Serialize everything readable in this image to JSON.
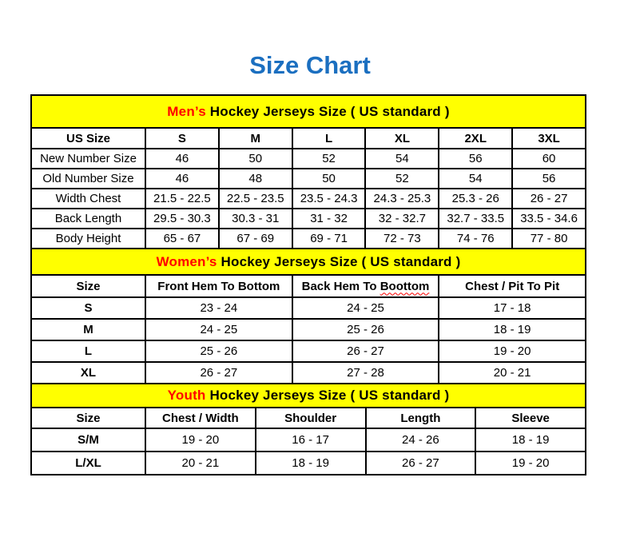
{
  "page": {
    "title": "Size Chart"
  },
  "colors": {
    "title": "#1b6fc0",
    "banner": "#ffff00",
    "accent": "#ff0000",
    "border": "#000000"
  },
  "sections": {
    "mens": {
      "banner_highlight": "Men’s",
      "banner_rest": " Hockey Jerseys Size ( US standard )",
      "headers": [
        "US Size",
        "S",
        "M",
        "L",
        "XL",
        "2XL",
        "3XL"
      ],
      "rows": [
        {
          "label": "New Number Size",
          "values": [
            "46",
            "50",
            "52",
            "54",
            "56",
            "60"
          ]
        },
        {
          "label": "Old Number Size",
          "values": [
            "46",
            "48",
            "50",
            "52",
            "54",
            "56"
          ]
        },
        {
          "label": "Width Chest",
          "values": [
            "21.5 - 22.5",
            "22.5 - 23.5",
            "23.5 - 24.3",
            "24.3 - 25.3",
            "25.3 - 26",
            "26 - 27"
          ]
        },
        {
          "label": "Back Length",
          "values": [
            "29.5 - 30.3",
            "30.3 - 31",
            "31 - 32",
            "32 - 32.7",
            "32.7 - 33.5",
            "33.5 - 34.6"
          ]
        },
        {
          "label": "Body Height",
          "values": [
            "65 - 67",
            "67 - 69",
            "69 - 71",
            "72 - 73",
            "74 - 76",
            "77 - 80"
          ]
        }
      ]
    },
    "womens": {
      "banner_highlight": "Women’s",
      "banner_rest": " Hockey Jerseys Size ( US standard )",
      "headers": {
        "size": "Size",
        "front": "Front Hem To Bottom",
        "back_prefix": "Back Hem To ",
        "back_typo": "Boottom",
        "chest": "Chest / Pit To Pit"
      },
      "rows": [
        {
          "label": "S",
          "values": [
            "23 - 24",
            "24 - 25",
            "17 - 18"
          ]
        },
        {
          "label": "M",
          "values": [
            "24 - 25",
            "25 - 26",
            "18 - 19"
          ]
        },
        {
          "label": "L",
          "values": [
            "25 - 26",
            "26 - 27",
            "19 - 20"
          ]
        },
        {
          "label": "XL",
          "values": [
            "26 - 27",
            "27 - 28",
            "20 - 21"
          ]
        }
      ]
    },
    "youth": {
      "banner_highlight": "Youth",
      "banner_rest": " Hockey Jerseys Size ( US standard )",
      "headers": [
        "Size",
        "Chest / Width",
        "Shoulder",
        "Length",
        "Sleeve"
      ],
      "rows": [
        {
          "label": "S/M",
          "values": [
            "19 - 20",
            "16 - 17",
            "24 - 26",
            "18 - 19"
          ]
        },
        {
          "label": "L/XL",
          "values": [
            "20 - 21",
            "18 - 19",
            "26 - 27",
            "19 - 20"
          ]
        }
      ]
    }
  }
}
